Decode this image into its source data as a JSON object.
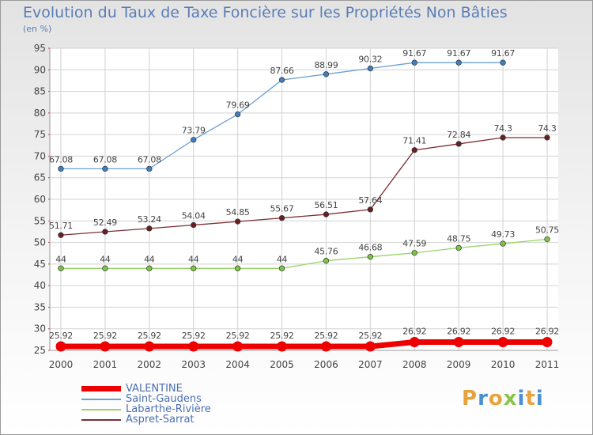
{
  "title": "Evolution du Taux de Taxe Foncière sur les Propriétés Non Bâties",
  "subtitle": "(en %)",
  "logo": {
    "letters": [
      "P",
      "r",
      "o",
      "x",
      "i",
      "t",
      "i"
    ],
    "colors": [
      "#e8a23c",
      "#4a8fd0",
      "#e8a23c",
      "#8bc34a",
      "#4a8fd0",
      "#e8a23c",
      "#4a8fd0"
    ]
  },
  "chart_data": {
    "type": "line",
    "x": [
      "2000",
      "2001",
      "2002",
      "2003",
      "2004",
      "2005",
      "2006",
      "2007",
      "2008",
      "2009",
      "2010",
      "2011"
    ],
    "ylim": [
      25,
      95
    ],
    "yticks": [
      "25",
      "30",
      "35",
      "40",
      "45",
      "50",
      "55",
      "60",
      "65",
      "70",
      "75",
      "80",
      "85",
      "90",
      "95"
    ],
    "grid": true,
    "legend_position": "bottom-left",
    "series": [
      {
        "name": "VALENTINE",
        "color": "#ee0000",
        "width": 7,
        "values": [
          25.92,
          25.92,
          25.92,
          25.92,
          25.92,
          25.92,
          25.92,
          25.92,
          26.92,
          26.92,
          26.92,
          26.92
        ],
        "labels": [
          "25.92",
          "25.92",
          "25.92",
          "25.92",
          "25.92",
          "25.92",
          "25.92",
          "25.92",
          "26.92",
          "26.92",
          "26.92",
          "26.92"
        ]
      },
      {
        "name": "Saint-Gaudens",
        "color": "#6a9fd0",
        "marker": "#3f7fc0",
        "width": 1.3,
        "values": [
          67.08,
          67.08,
          67.08,
          73.79,
          79.69,
          87.66,
          88.99,
          90.32,
          91.67,
          91.67,
          91.67,
          null
        ],
        "labels": [
          "67.08",
          "67.08",
          "67.08",
          "73.79",
          "79.69",
          "87.66",
          "88.99",
          "90.32",
          "91.67",
          "91.67",
          "91.67",
          null
        ]
      },
      {
        "name": "Labarthe-Rivière",
        "color": "#98d468",
        "marker": "#7cc644",
        "width": 1.3,
        "values": [
          44,
          44,
          44,
          44,
          44,
          44,
          45.76,
          46.68,
          47.59,
          48.75,
          49.73,
          50.75
        ],
        "labels": [
          "44",
          "44",
          "44",
          "44",
          "44",
          "44",
          "45.76",
          "46.68",
          "47.59",
          "48.75",
          "49.73",
          "50.75"
        ]
      },
      {
        "name": "Aspret-Sarrat",
        "color": "#7a2f34",
        "marker": "#6a1e22",
        "width": 1.3,
        "values": [
          51.71,
          52.49,
          53.24,
          54.04,
          54.85,
          55.67,
          56.51,
          57.64,
          71.41,
          72.84,
          74.3,
          74.3
        ],
        "labels": [
          "51.71",
          "52.49",
          "53.24",
          "54.04",
          "54.85",
          "55.67",
          "56.51",
          "57.64",
          "71.41",
          "72.84",
          "74.3",
          "74.3"
        ]
      }
    ]
  }
}
